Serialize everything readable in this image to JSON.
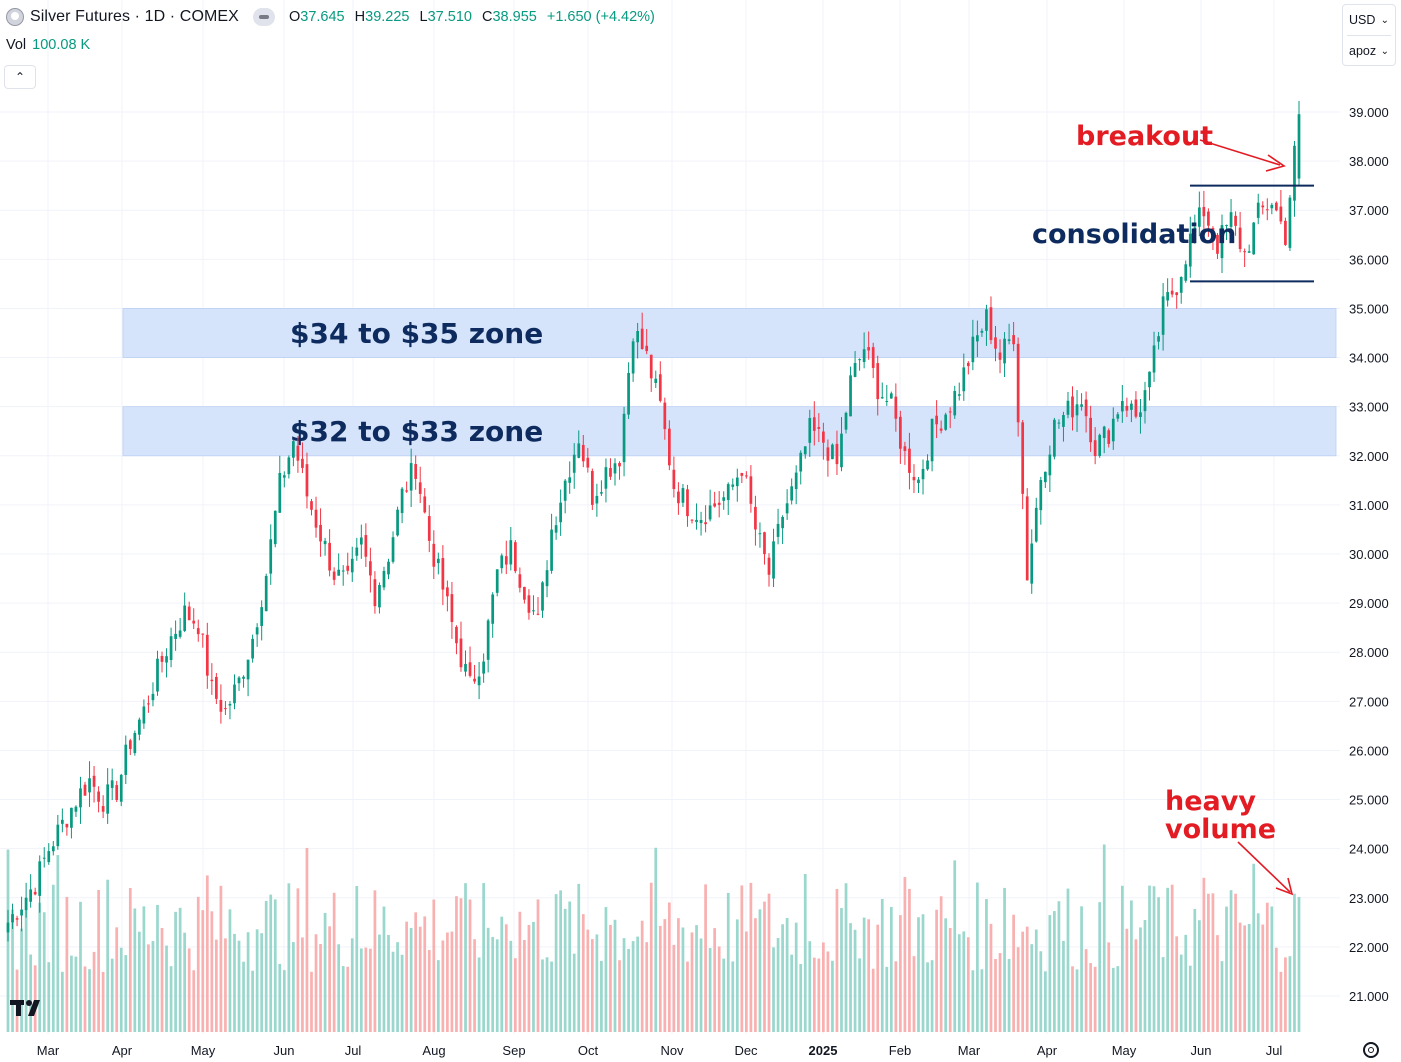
{
  "header": {
    "title": "Silver Futures · 1D · COMEX",
    "ohlc": [
      {
        "label": "O",
        "value": "37.645"
      },
      {
        "label": "H",
        "value": "39.225"
      },
      {
        "label": "L",
        "value": "37.510"
      },
      {
        "label": "C",
        "value": "38.955"
      }
    ],
    "change": "+1.650 (+4.42%)"
  },
  "volume_legend": {
    "label": "Vol",
    "value": "100.08 K"
  },
  "currency": "USD",
  "scale_mode": "apoz",
  "colors": {
    "up": "#089981",
    "down": "#f23645",
    "zone": "#d6e4fb",
    "annotation_red": "#e31b23",
    "annotation_navy": "#0d2b5e"
  },
  "chart_data": {
    "type": "candlestick",
    "instrument": "Silver Futures",
    "interval": "1D",
    "exchange": "COMEX",
    "currency": "USD",
    "y_range": [
      20.5,
      40.0
    ],
    "y_ticks": [
      "39.000",
      "38.000",
      "37.000",
      "36.000",
      "35.000",
      "34.000",
      "33.000",
      "32.000",
      "31.000",
      "30.000",
      "29.000",
      "28.000",
      "27.000",
      "26.000",
      "25.000",
      "24.000",
      "23.000",
      "22.000",
      "21.000"
    ],
    "x_labels": [
      "Mar",
      "Apr",
      "May",
      "Jun",
      "Jul",
      "Aug",
      "Sep",
      "Oct",
      "Nov",
      "Dec",
      "2025",
      "Feb",
      "Mar",
      "Apr",
      "May",
      "Jun",
      "Jul"
    ],
    "series": [
      {
        "values": [
          22.5,
          22.9,
          23.3,
          24.0,
          24.5,
          25.0,
          25.4,
          25.0,
          25.2,
          26.2,
          26.8,
          27.6,
          28.3,
          28.8,
          28.6,
          27.2,
          26.8,
          27.4,
          28.3,
          29.6,
          31.4,
          32.3,
          31.2,
          30.4,
          29.6,
          29.4,
          30.2,
          29.2,
          30.0,
          31.2,
          31.8,
          30.3,
          29.3,
          28.2,
          27.3,
          28.0,
          29.6,
          30.1,
          29.3,
          28.6,
          30.5,
          31.5,
          32.4,
          31.2,
          31.7,
          32.0,
          34.6,
          34.0,
          33.0,
          31.4,
          31.0,
          30.8,
          31.0,
          31.2,
          31.8,
          30.5,
          29.6,
          30.8,
          31.5,
          32.5,
          32.3,
          31.8,
          33.5,
          34.2,
          33.4,
          33.0,
          32.0,
          31.5,
          32.5,
          32.9,
          33.4,
          34.2,
          34.8,
          34.0,
          34.5,
          29.6,
          31.6,
          32.6,
          32.9,
          33.2,
          32.2,
          32.5,
          33.2,
          32.8,
          33.5,
          35.0,
          35.5,
          36.4,
          37.0,
          36.3,
          36.8,
          36.1,
          36.9,
          37.2,
          36.5,
          38.95
        ]
      }
    ],
    "zones": [
      {
        "label": "$34 to $35 zone",
        "from": 34.0,
        "to": 35.0
      },
      {
        "label": "$32 to $33 zone",
        "from": 32.0,
        "to": 33.0
      }
    ],
    "consolidation_lines": [
      35.55,
      37.5
    ],
    "annotations": {
      "breakout": "breakout",
      "consolidation": "consolidation",
      "volume_line1": "heavy",
      "volume_line2": "volume"
    }
  }
}
